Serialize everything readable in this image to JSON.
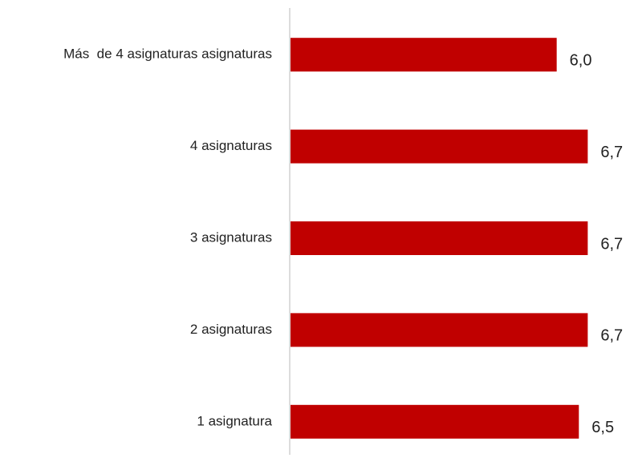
{
  "chart_data": {
    "type": "bar",
    "orientation": "horizontal",
    "categories": [
      "Más  de 4 asignaturas asignaturas",
      "4 asignaturas",
      "3 asignaturas",
      "2 asignaturas",
      "1 asignatura"
    ],
    "values": [
      6.0,
      6.7,
      6.7,
      6.7,
      6.5
    ],
    "value_labels": [
      "6,0",
      "6,7",
      "6,7",
      "6,7",
      "6,5"
    ],
    "title": "",
    "xlabel": "",
    "ylabel": "",
    "xlim": [
      0,
      7.2
    ],
    "grid": false,
    "legend": "none",
    "bar_color": "#c00000",
    "axis_color": "#d0d0d0"
  }
}
